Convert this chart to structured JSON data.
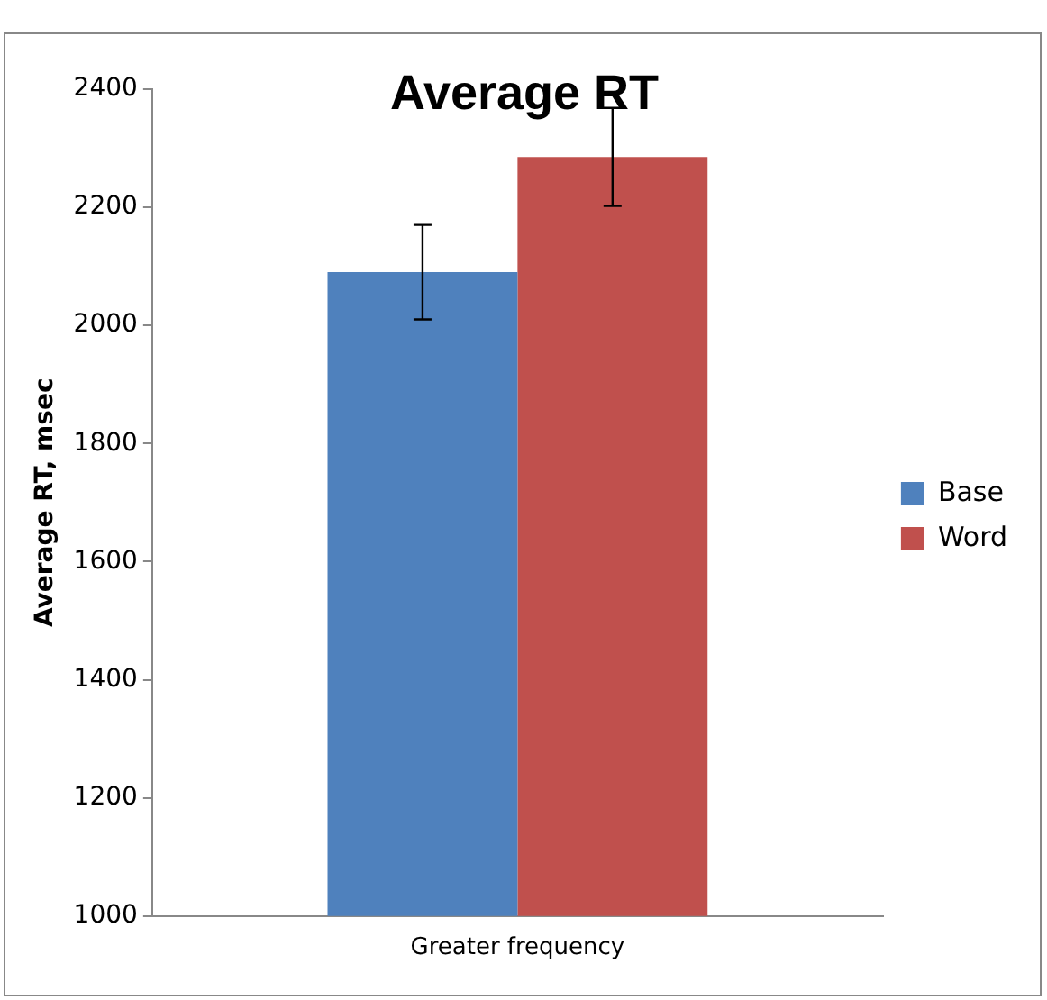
{
  "chart_data": {
    "type": "bar",
    "title": "Average RT",
    "ylabel": "Average RT, msec",
    "categories": [
      "Greater frequency"
    ],
    "series": [
      {
        "name": "Base",
        "color": "#4f81bd",
        "values": [
          2090
        ],
        "errors": [
          80
        ]
      },
      {
        "name": "Word",
        "color": "#c0504d",
        "values": [
          2285
        ],
        "errors": [
          83
        ]
      }
    ],
    "ylim": [
      1000,
      2400
    ],
    "yticks": [
      1000,
      1200,
      1400,
      1600,
      1800,
      2000,
      2200,
      2400
    ],
    "grid": false,
    "legend": "right"
  }
}
